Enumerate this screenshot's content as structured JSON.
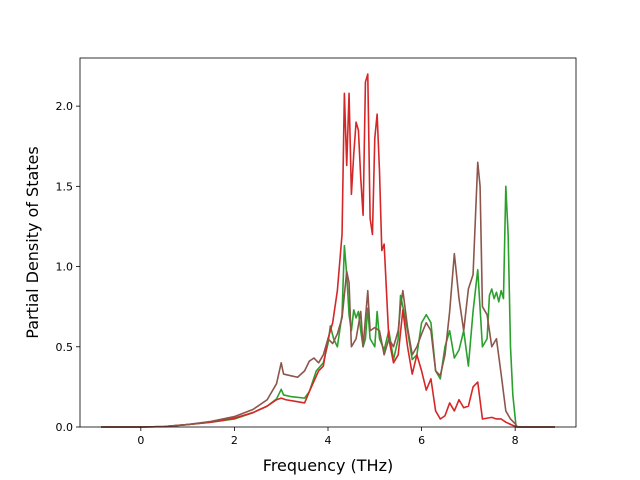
{
  "chart_data": {
    "type": "line",
    "title": "",
    "xlabel": "Frequency (THz)",
    "ylabel": "Partial Density of States",
    "xlim": [
      -1.3,
      9.3
    ],
    "ylim": [
      0.0,
      2.3
    ],
    "xticks": [
      0,
      2,
      4,
      6,
      8
    ],
    "yticks": [
      0.0,
      0.5,
      1.0,
      1.5,
      2.0
    ],
    "xtick_labels": [
      "0",
      "2",
      "4",
      "6",
      "8"
    ],
    "ytick_labels": [
      "0.0",
      "0.5",
      "1.0",
      "1.5",
      "2.0"
    ],
    "grid": false,
    "legend": "none",
    "series": [
      {
        "color": "#2ca02c",
        "points": [
          [
            -0.85,
            0.0
          ],
          [
            0.0,
            0.0
          ],
          [
            0.5,
            0.003
          ],
          [
            1.0,
            0.015
          ],
          [
            1.5,
            0.03
          ],
          [
            2.0,
            0.05
          ],
          [
            2.4,
            0.09
          ],
          [
            2.7,
            0.13
          ],
          [
            2.9,
            0.175
          ],
          [
            3.0,
            0.235
          ],
          [
            3.05,
            0.2
          ],
          [
            3.2,
            0.19
          ],
          [
            3.5,
            0.18
          ],
          [
            3.6,
            0.22
          ],
          [
            3.75,
            0.35
          ],
          [
            3.9,
            0.4
          ],
          [
            4.0,
            0.52
          ],
          [
            4.05,
            0.63
          ],
          [
            4.12,
            0.55
          ],
          [
            4.2,
            0.5
          ],
          [
            4.3,
            0.7
          ],
          [
            4.35,
            1.13
          ],
          [
            4.4,
            0.95
          ],
          [
            4.45,
            0.7
          ],
          [
            4.5,
            0.6
          ],
          [
            4.55,
            0.73
          ],
          [
            4.6,
            0.68
          ],
          [
            4.65,
            0.72
          ],
          [
            4.7,
            0.6
          ],
          [
            4.75,
            0.5
          ],
          [
            4.8,
            0.55
          ],
          [
            4.85,
            0.74
          ],
          [
            4.9,
            0.55
          ],
          [
            5.0,
            0.5
          ],
          [
            5.05,
            0.72
          ],
          [
            5.1,
            0.55
          ],
          [
            5.2,
            0.48
          ],
          [
            5.3,
            0.6
          ],
          [
            5.4,
            0.42
          ],
          [
            5.5,
            0.55
          ],
          [
            5.55,
            0.82
          ],
          [
            5.6,
            0.75
          ],
          [
            5.7,
            0.6
          ],
          [
            5.8,
            0.42
          ],
          [
            5.9,
            0.45
          ],
          [
            6.0,
            0.65
          ],
          [
            6.1,
            0.7
          ],
          [
            6.2,
            0.65
          ],
          [
            6.3,
            0.35
          ],
          [
            6.4,
            0.3
          ],
          [
            6.5,
            0.5
          ],
          [
            6.6,
            0.6
          ],
          [
            6.7,
            0.43
          ],
          [
            6.8,
            0.48
          ],
          [
            6.9,
            0.6
          ],
          [
            7.0,
            0.38
          ],
          [
            7.1,
            0.72
          ],
          [
            7.2,
            0.98
          ],
          [
            7.3,
            0.5
          ],
          [
            7.4,
            0.55
          ],
          [
            7.45,
            0.82
          ],
          [
            7.5,
            0.86
          ],
          [
            7.55,
            0.8
          ],
          [
            7.6,
            0.84
          ],
          [
            7.65,
            0.78
          ],
          [
            7.7,
            0.85
          ],
          [
            7.75,
            0.8
          ],
          [
            7.8,
            1.5
          ],
          [
            7.85,
            1.2
          ],
          [
            7.9,
            0.5
          ],
          [
            7.95,
            0.2
          ],
          [
            8.02,
            0.0
          ],
          [
            8.85,
            0.0
          ]
        ]
      },
      {
        "color": "#d62728",
        "points": [
          [
            -0.85,
            0.0
          ],
          [
            0.0,
            0.0
          ],
          [
            0.5,
            0.003
          ],
          [
            1.0,
            0.015
          ],
          [
            1.5,
            0.03
          ],
          [
            2.0,
            0.055
          ],
          [
            2.4,
            0.09
          ],
          [
            2.7,
            0.13
          ],
          [
            2.9,
            0.17
          ],
          [
            3.0,
            0.18
          ],
          [
            3.1,
            0.17
          ],
          [
            3.3,
            0.16
          ],
          [
            3.5,
            0.15
          ],
          [
            3.6,
            0.22
          ],
          [
            3.8,
            0.35
          ],
          [
            3.9,
            0.38
          ],
          [
            4.0,
            0.55
          ],
          [
            4.1,
            0.65
          ],
          [
            4.2,
            0.85
          ],
          [
            4.3,
            1.2
          ],
          [
            4.35,
            2.08
          ],
          [
            4.4,
            1.63
          ],
          [
            4.45,
            2.08
          ],
          [
            4.5,
            1.45
          ],
          [
            4.55,
            1.7
          ],
          [
            4.6,
            1.9
          ],
          [
            4.65,
            1.85
          ],
          [
            4.7,
            1.55
          ],
          [
            4.75,
            1.32
          ],
          [
            4.8,
            2.15
          ],
          [
            4.85,
            2.2
          ],
          [
            4.9,
            1.3
          ],
          [
            4.95,
            1.2
          ],
          [
            5.0,
            1.8
          ],
          [
            5.05,
            1.95
          ],
          [
            5.1,
            1.6
          ],
          [
            5.15,
            1.1
          ],
          [
            5.2,
            1.14
          ],
          [
            5.3,
            0.55
          ],
          [
            5.4,
            0.4
          ],
          [
            5.5,
            0.45
          ],
          [
            5.6,
            0.73
          ],
          [
            5.7,
            0.5
          ],
          [
            5.8,
            0.33
          ],
          [
            5.9,
            0.45
          ],
          [
            6.0,
            0.35
          ],
          [
            6.1,
            0.23
          ],
          [
            6.2,
            0.3
          ],
          [
            6.3,
            0.1
          ],
          [
            6.4,
            0.05
          ],
          [
            6.5,
            0.07
          ],
          [
            6.6,
            0.15
          ],
          [
            6.7,
            0.1
          ],
          [
            6.8,
            0.17
          ],
          [
            6.9,
            0.12
          ],
          [
            7.0,
            0.13
          ],
          [
            7.1,
            0.25
          ],
          [
            7.2,
            0.28
          ],
          [
            7.3,
            0.05
          ],
          [
            7.5,
            0.06
          ],
          [
            7.6,
            0.05
          ],
          [
            7.7,
            0.05
          ],
          [
            7.8,
            0.03
          ],
          [
            7.95,
            0.01
          ],
          [
            8.05,
            0.0
          ],
          [
            8.85,
            0.0
          ]
        ]
      },
      {
        "color": "#8c564b",
        "points": [
          [
            -0.85,
            0.0
          ],
          [
            0.0,
            0.0
          ],
          [
            0.5,
            0.003
          ],
          [
            1.0,
            0.015
          ],
          [
            1.5,
            0.035
          ],
          [
            2.0,
            0.065
          ],
          [
            2.4,
            0.11
          ],
          [
            2.7,
            0.17
          ],
          [
            2.9,
            0.27
          ],
          [
            3.0,
            0.4
          ],
          [
            3.05,
            0.33
          ],
          [
            3.2,
            0.32
          ],
          [
            3.35,
            0.31
          ],
          [
            3.5,
            0.35
          ],
          [
            3.6,
            0.41
          ],
          [
            3.7,
            0.43
          ],
          [
            3.8,
            0.4
          ],
          [
            3.9,
            0.45
          ],
          [
            4.0,
            0.55
          ],
          [
            4.1,
            0.52
          ],
          [
            4.2,
            0.58
          ],
          [
            4.3,
            0.68
          ],
          [
            4.4,
            0.97
          ],
          [
            4.45,
            0.9
          ],
          [
            4.5,
            0.5
          ],
          [
            4.6,
            0.55
          ],
          [
            4.7,
            0.72
          ],
          [
            4.75,
            0.5
          ],
          [
            4.85,
            0.85
          ],
          [
            4.9,
            0.6
          ],
          [
            5.0,
            0.62
          ],
          [
            5.1,
            0.6
          ],
          [
            5.2,
            0.45
          ],
          [
            5.3,
            0.55
          ],
          [
            5.4,
            0.5
          ],
          [
            5.5,
            0.6
          ],
          [
            5.55,
            0.75
          ],
          [
            5.6,
            0.85
          ],
          [
            5.7,
            0.62
          ],
          [
            5.8,
            0.45
          ],
          [
            5.9,
            0.5
          ],
          [
            6.0,
            0.58
          ],
          [
            6.1,
            0.65
          ],
          [
            6.2,
            0.6
          ],
          [
            6.3,
            0.35
          ],
          [
            6.4,
            0.32
          ],
          [
            6.5,
            0.45
          ],
          [
            6.6,
            0.72
          ],
          [
            6.7,
            1.08
          ],
          [
            6.8,
            0.8
          ],
          [
            6.9,
            0.6
          ],
          [
            7.0,
            0.86
          ],
          [
            7.1,
            0.95
          ],
          [
            7.15,
            1.3
          ],
          [
            7.2,
            1.65
          ],
          [
            7.25,
            1.5
          ],
          [
            7.3,
            0.75
          ],
          [
            7.4,
            0.7
          ],
          [
            7.5,
            0.5
          ],
          [
            7.6,
            0.55
          ],
          [
            7.7,
            0.33
          ],
          [
            7.8,
            0.1
          ],
          [
            7.9,
            0.05
          ],
          [
            8.0,
            0.02
          ],
          [
            8.05,
            0.0
          ],
          [
            8.85,
            0.0
          ]
        ]
      }
    ]
  }
}
